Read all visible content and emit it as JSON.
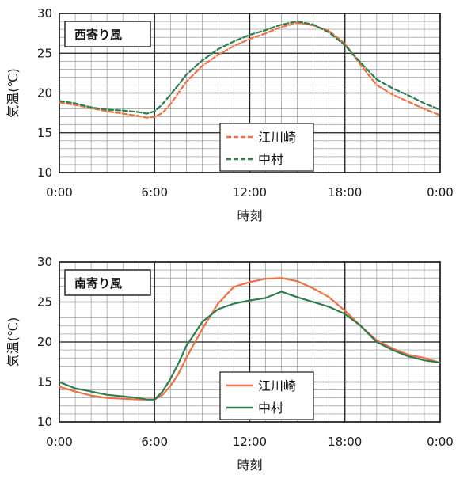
{
  "chart_data": [
    {
      "type": "line",
      "title": "西寄り風",
      "xlabel": "時刻",
      "ylabel": "気温(℃)",
      "ylim": [
        10,
        30
      ],
      "yticks": [
        "10",
        "15",
        "20",
        "25",
        "30"
      ],
      "xlim": [
        0,
        24
      ],
      "xticks": [
        "0:00",
        "6:00",
        "12:00",
        "18:00",
        "0:00"
      ],
      "grid": true,
      "legend_position": "center-right",
      "series": [
        {
          "name": "江川崎",
          "color": "#f07040",
          "style": "dashed",
          "x": [
            0,
            1,
            2,
            3,
            4,
            5,
            5.5,
            6,
            6.5,
            7,
            7.5,
            8,
            9,
            10,
            11,
            12,
            13,
            14,
            15,
            16,
            17,
            18,
            19,
            20,
            21,
            22,
            23,
            24
          ],
          "y": [
            18.8,
            18.5,
            18.1,
            17.7,
            17.4,
            17.1,
            16.9,
            17.0,
            17.5,
            18.6,
            20.0,
            21.4,
            23.4,
            24.8,
            25.9,
            26.8,
            27.5,
            28.3,
            28.8,
            28.5,
            27.8,
            26.2,
            23.5,
            21.0,
            19.8,
            18.9,
            18.0,
            17.2
          ]
        },
        {
          "name": "中村",
          "color": "#2e7d4f",
          "style": "dashed",
          "x": [
            0,
            1,
            2,
            3,
            4,
            5,
            5.5,
            6,
            6.5,
            7,
            7.5,
            8,
            9,
            10,
            11,
            12,
            13,
            14,
            15,
            16,
            17,
            18,
            19,
            20,
            21,
            22,
            23,
            24
          ],
          "y": [
            19.0,
            18.7,
            18.2,
            17.9,
            17.8,
            17.6,
            17.4,
            17.7,
            18.6,
            19.8,
            21.0,
            22.3,
            24.1,
            25.5,
            26.5,
            27.3,
            27.9,
            28.6,
            29.0,
            28.6,
            27.6,
            26.0,
            23.8,
            21.7,
            20.6,
            19.7,
            18.7,
            17.9
          ]
        }
      ]
    },
    {
      "type": "line",
      "title": "南寄り風",
      "xlabel": "時刻",
      "ylabel": "気温(℃)",
      "ylim": [
        10,
        30
      ],
      "yticks": [
        "10",
        "15",
        "20",
        "25",
        "30"
      ],
      "xlim": [
        0,
        24
      ],
      "xticks": [
        "0:00",
        "6:00",
        "12:00",
        "18:00",
        "0:00"
      ],
      "grid": true,
      "legend_position": "center-right",
      "series": [
        {
          "name": "江川崎",
          "color": "#f07040",
          "style": "solid",
          "x": [
            0,
            1,
            2,
            3,
            4,
            5,
            5.5,
            6,
            6.5,
            7,
            7.5,
            8,
            9,
            10,
            11,
            12,
            13,
            14,
            15,
            16,
            17,
            18,
            19,
            20,
            21,
            22,
            23,
            24
          ],
          "y": [
            14.4,
            13.8,
            13.3,
            13.0,
            12.9,
            12.8,
            12.8,
            12.8,
            13.4,
            14.5,
            16.0,
            18.0,
            21.6,
            24.8,
            26.9,
            27.5,
            27.9,
            28.0,
            27.6,
            26.7,
            25.6,
            23.9,
            22.0,
            20.2,
            19.2,
            18.4,
            18.0,
            17.4
          ]
        },
        {
          "name": "中村",
          "color": "#2e7d4f",
          "style": "solid",
          "x": [
            0,
            1,
            2,
            3,
            4,
            5,
            5.5,
            6,
            6.5,
            7,
            7.5,
            8,
            9,
            10,
            11,
            12,
            13,
            14,
            15,
            16,
            17,
            18,
            19,
            20,
            21,
            22,
            23,
            24
          ],
          "y": [
            15.0,
            14.2,
            13.8,
            13.4,
            13.2,
            13.0,
            12.8,
            12.8,
            13.8,
            15.4,
            17.3,
            19.5,
            22.5,
            24.1,
            24.8,
            25.2,
            25.5,
            26.3,
            25.6,
            25.0,
            24.4,
            23.5,
            22.0,
            20.0,
            19.0,
            18.2,
            17.7,
            17.4
          ]
        }
      ]
    }
  ]
}
